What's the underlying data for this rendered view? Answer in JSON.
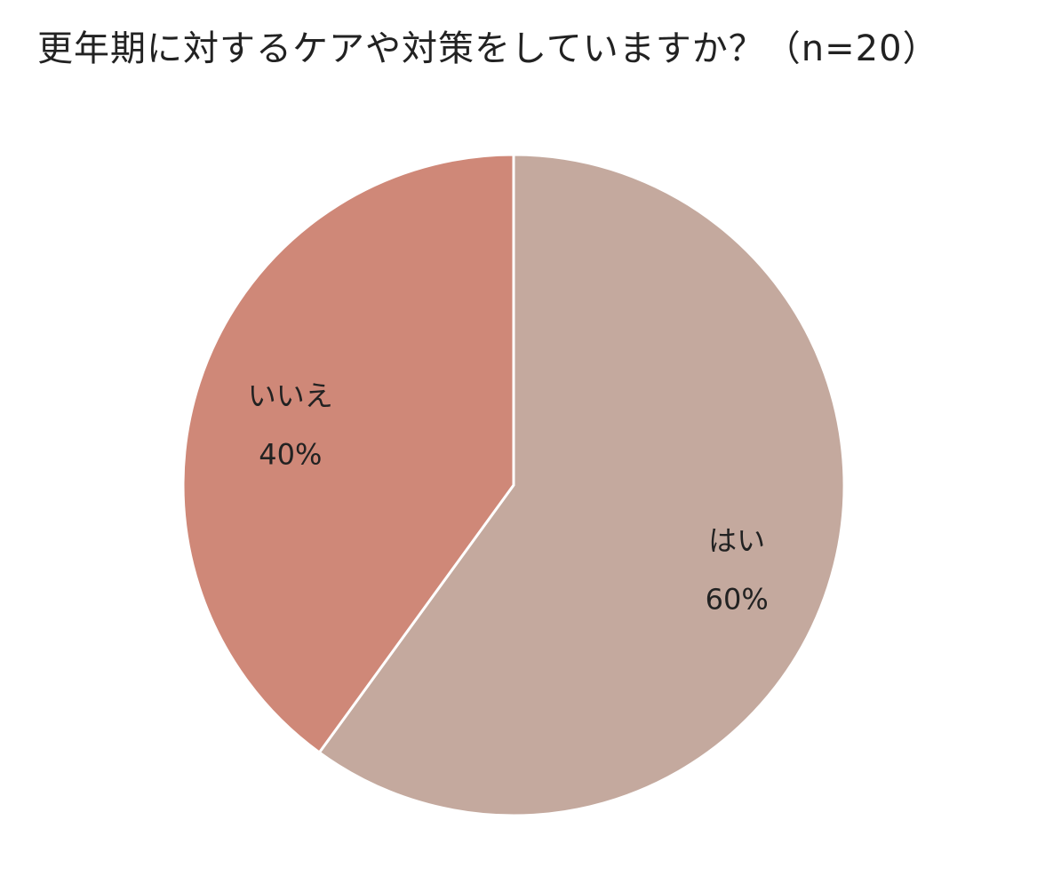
{
  "chart_data": {
    "type": "pie",
    "title": "更年期に対するケアや対策をしていますか？（n=20）",
    "start_angle_deg": 0,
    "direction": "clockwise",
    "slices": [
      {
        "label": "はい",
        "value": 60,
        "display": "60%",
        "color": "#c4a99e"
      },
      {
        "label": "いいえ",
        "value": 40,
        "display": "40%",
        "color": "#cf8878"
      }
    ]
  }
}
